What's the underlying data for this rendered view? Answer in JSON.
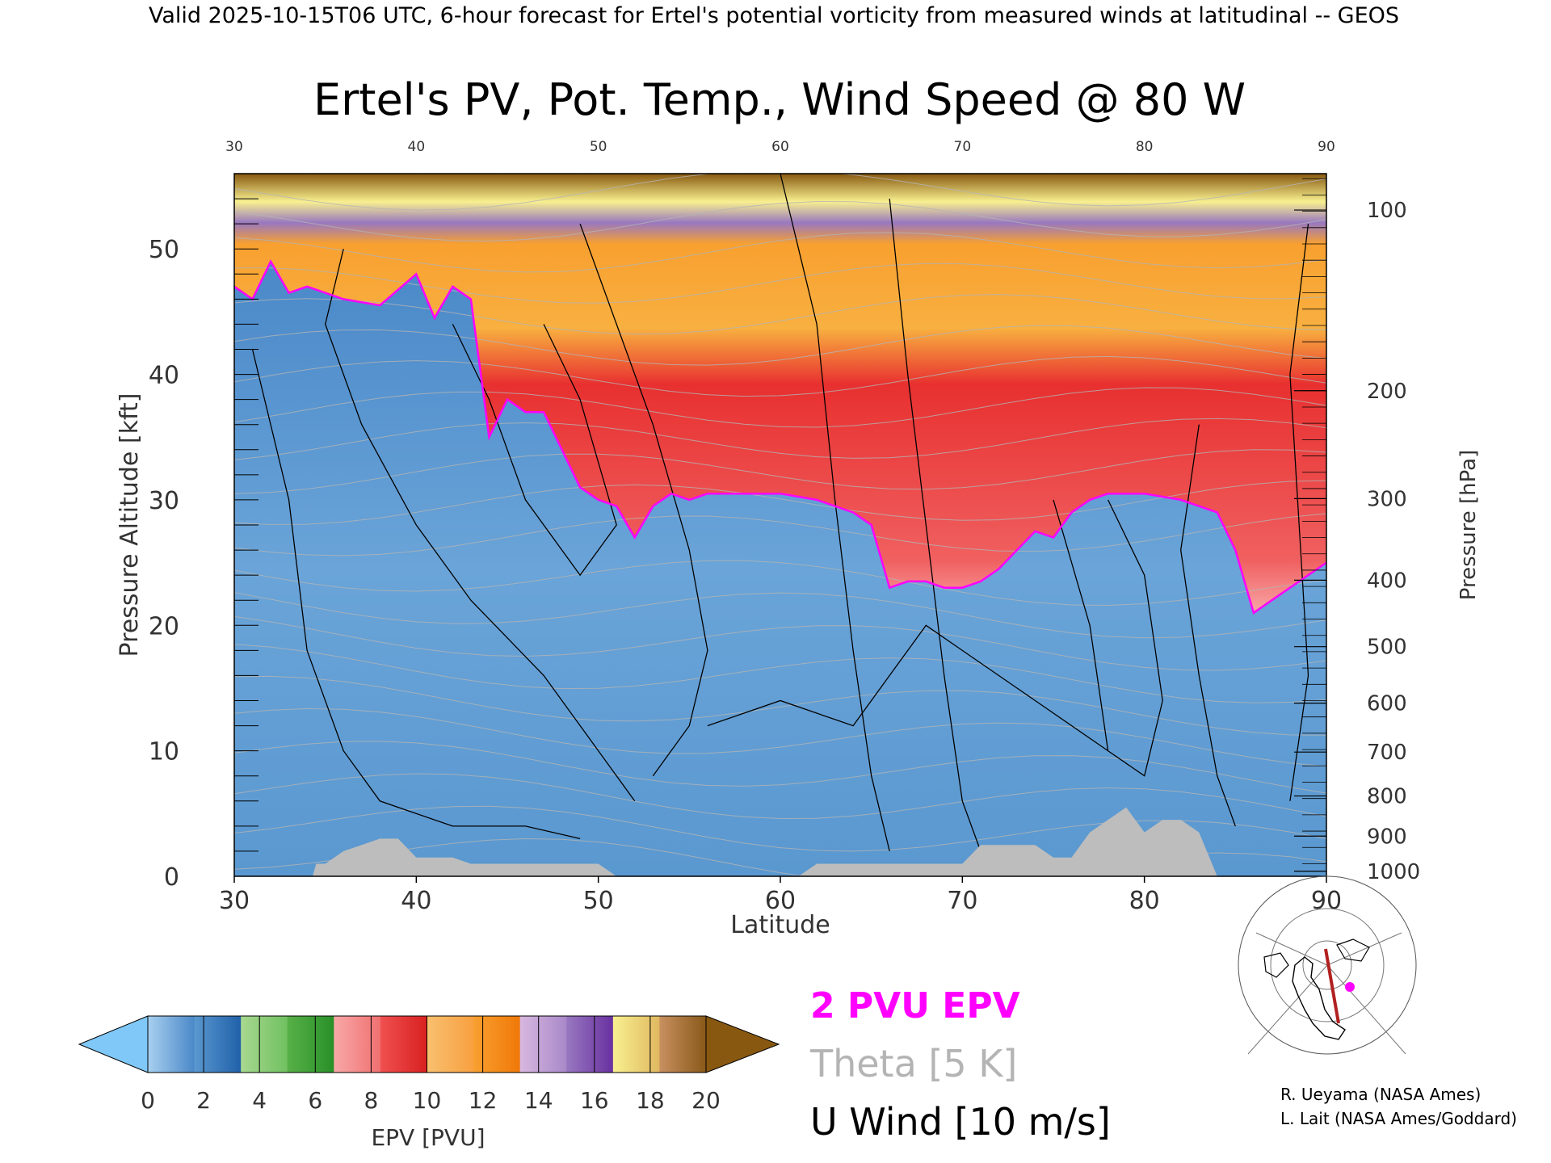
{
  "header": {
    "valid_line": "Valid 2025-10-15T06 UTC, 6-hour forecast for Ertel's potential vorticity from measured winds at latitudinal -- GEOS"
  },
  "chart_data": {
    "type": "heatmap",
    "title": "Ertel's PV, Pot. Temp., Wind Speed @ 80 W",
    "xlabel": "Latitude",
    "ylabel": "Pressure Altitude [kft]",
    "ylabel_right": "Pressure [hPa]",
    "xlim": [
      30,
      90
    ],
    "ylim": [
      0,
      56
    ],
    "x_ticks": [
      30,
      40,
      50,
      60,
      70,
      80,
      90
    ],
    "y_ticks": [
      0,
      10,
      20,
      30,
      40,
      50
    ],
    "pressure_ticks": [
      {
        "label": "100",
        "kft": 53.1
      },
      {
        "label": "200",
        "kft": 38.7
      },
      {
        "label": "300",
        "kft": 30.1
      },
      {
        "label": "400",
        "kft": 23.6
      },
      {
        "label": "500",
        "kft": 18.3
      },
      {
        "label": "600",
        "kft": 13.8
      },
      {
        "label": "700",
        "kft": 9.9
      },
      {
        "label": "800",
        "kft": 6.4
      },
      {
        "label": "900",
        "kft": 3.2
      },
      {
        "label": "1000",
        "kft": 0.4
      }
    ],
    "tropopause_2pvu": {
      "lat": [
        30,
        31,
        32,
        33,
        34,
        36,
        38,
        40,
        41,
        42,
        43,
        44,
        45,
        46,
        47,
        48,
        49,
        50,
        51,
        52,
        53,
        54,
        55,
        56,
        58,
        60,
        62,
        64,
        65,
        66,
        67,
        68,
        69,
        70,
        71,
        72,
        73,
        74,
        75,
        76,
        77,
        78,
        80,
        82,
        84,
        85,
        86,
        87,
        88,
        89,
        90
      ],
      "kft": [
        47,
        46,
        49,
        46.5,
        47,
        46,
        45.5,
        48,
        44.5,
        47,
        46,
        35,
        38,
        37,
        37,
        34,
        31,
        30,
        29.5,
        27,
        29.5,
        30.5,
        30,
        30.5,
        30.5,
        30.5,
        30,
        29,
        28,
        23,
        23.5,
        23.5,
        23,
        23,
        23.5,
        24.5,
        26,
        27.5,
        27,
        29,
        30,
        30.5,
        30.5,
        30,
        29,
        26,
        21,
        22,
        23,
        24,
        25
      ]
    },
    "terrain_kft": {
      "lat": [
        30,
        34.3,
        34.5,
        35,
        36,
        37,
        38,
        39,
        40,
        42,
        43,
        48,
        50,
        51,
        61,
        62,
        70,
        71,
        74,
        75,
        76,
        77,
        78,
        79,
        80,
        81,
        82,
        83,
        84,
        90
      ],
      "kft": [
        0,
        0,
        1,
        1,
        2,
        2.5,
        3,
        3,
        1.5,
        1.5,
        1,
        1,
        1,
        0,
        0,
        1,
        1,
        2.5,
        2.5,
        1.5,
        1.5,
        3.5,
        4.5,
        5.5,
        3.5,
        4.5,
        4.5,
        3.5,
        0,
        0
      ]
    },
    "colorbar": {
      "label": "EPV [PVU]",
      "ticks": [
        "0",
        "2",
        "4",
        "6",
        "8",
        "10",
        "12",
        "14",
        "16",
        "18",
        "20"
      ],
      "under_color": "#80c8f8",
      "over_color": "#885810",
      "segments": [
        [
          "#a8d0f0",
          "#4a88c8"
        ],
        [
          "#5a98d0",
          "#2060a8"
        ],
        [
          "#a8d890",
          "#70c060"
        ],
        [
          "#58b048",
          "#289028"
        ],
        [
          "#f8a8a8",
          "#f07070"
        ],
        [
          "#f05050",
          "#d82020"
        ],
        [
          "#f8c070",
          "#f8a040"
        ],
        [
          "#f8a030",
          "#f07808"
        ],
        [
          "#d8b8e0",
          "#a888c8"
        ],
        [
          "#9878c0",
          "#6830a0"
        ],
        [
          "#f8f090",
          "#e0b860"
        ],
        [
          "#c89060",
          "#885818"
        ]
      ]
    },
    "legend": {
      "epv_contour": "2 PVU EPV",
      "theta": "Theta [5 K]",
      "u_wind": "U Wind [10 m/s]",
      "epv_color": "#ff00ff",
      "theta_color": "#b4b4b4",
      "wind_color": "#000000"
    },
    "inset_map": "map-inset showing 80 W cross-section line over North America",
    "grid": false
  },
  "credits": {
    "line1": "R. Ueyama (NASA Ames)",
    "line2": "L. Lait (NASA Ames/Goddard)"
  }
}
